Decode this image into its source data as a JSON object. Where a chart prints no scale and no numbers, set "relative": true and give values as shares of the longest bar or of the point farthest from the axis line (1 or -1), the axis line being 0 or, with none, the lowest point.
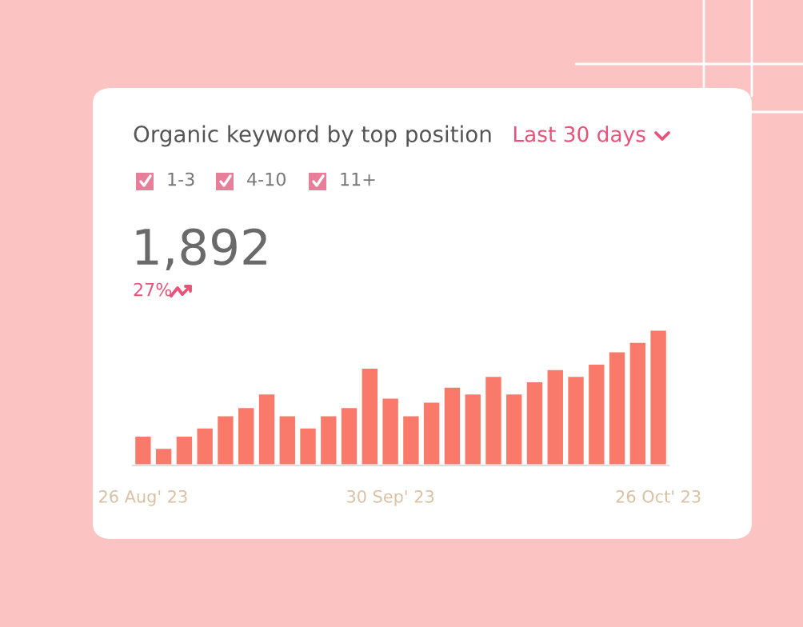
{
  "chart_data": {
    "type": "bar",
    "title": "Organic keyword by top position",
    "annotations": [
      "Last 30 days",
      "1-3",
      "4-10",
      "11+",
      "1,892",
      "27%"
    ],
    "categories": [
      "26 Aug' 23",
      null,
      null,
      null,
      null,
      null,
      null,
      null,
      null,
      null,
      null,
      null,
      "30 Sep' 23",
      null,
      null,
      null,
      null,
      null,
      null,
      null,
      null,
      null,
      null,
      null,
      null,
      "26 Oct' 23"
    ],
    "values": [
      0.22,
      0.13,
      0.22,
      0.28,
      0.37,
      0.43,
      0.53,
      0.37,
      0.28,
      0.37,
      0.43,
      0.72,
      0.5,
      0.37,
      0.47,
      0.58,
      0.53,
      0.66,
      0.53,
      0.62,
      0.71,
      0.66,
      0.75,
      0.84,
      0.91,
      1.0
    ],
    "color": "#f97a6a",
    "relative": true,
    "grid": false,
    "legend": false
  }
}
